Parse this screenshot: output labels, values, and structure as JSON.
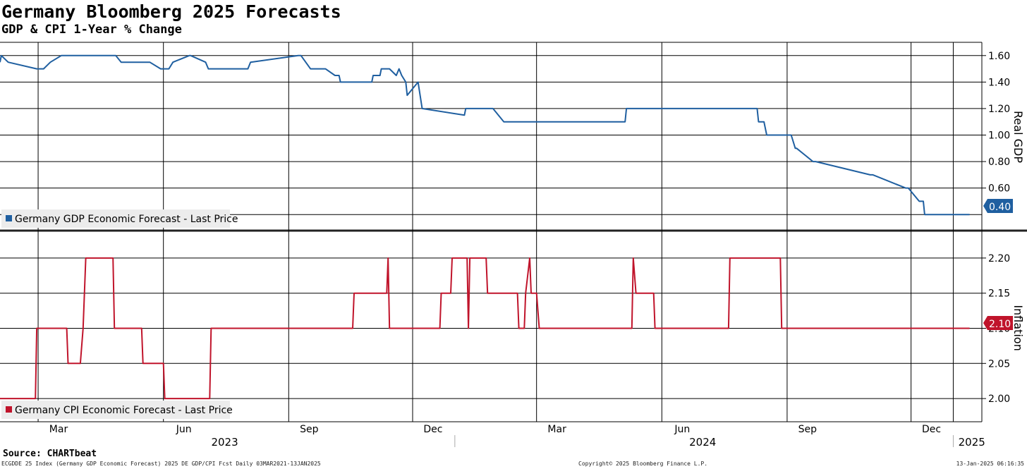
{
  "header": {
    "title": "Germany Bloomberg 2025 Forecasts",
    "subtitle": "GDP & CPI 1-Year % Change"
  },
  "footer": {
    "source": "Source: CHARTbeat",
    "left": "ECGDDE 25 Index (Germany GDP Economic Forecast) 2025 DE GDP/CPI Fcst  Daily 03MAR2021-13JAN2025",
    "mid": "Copyright© 2025 Bloomberg Finance L.P.",
    "right": "13-Jan-2025 06:16:35"
  },
  "colors": {
    "gdp": "#1f5fa0",
    "cpi": "#c0142b",
    "grid": "#000000",
    "panel_divider": "#222222"
  },
  "chart_data": [
    {
      "type": "line",
      "title": "Germany Bloomberg 2025 Forecasts",
      "subtitle": "GDP & CPI 1-Year % Change",
      "ylabel": "Real GDP",
      "ylim": [
        0.3,
        1.7
      ],
      "yticks": [
        "0.60",
        "0.80",
        "1.00",
        "1.20",
        "1.40",
        "1.60"
      ],
      "last_value_label": "0.40",
      "legend": "Germany GDP Economic Forecast - Last Price",
      "legend_position": "bottom-left",
      "grid": true,
      "series": [
        {
          "name": "Germany GDP Economic Forecast - Last Price",
          "x": [
            "2023-02-01",
            "2023-02-02",
            "2023-02-07",
            "2023-02-28",
            "2023-03-01",
            "2023-03-05",
            "2023-03-10",
            "2023-03-18",
            "2023-03-24",
            "2023-03-29",
            "2023-04-27",
            "2023-05-01",
            "2023-05-22",
            "2023-05-30",
            "2023-06-05",
            "2023-06-08",
            "2023-06-20",
            "2023-06-21",
            "2023-07-02",
            "2023-07-04",
            "2023-07-09",
            "2023-08-02",
            "2023-08-04",
            "2023-09-08",
            "2023-09-10",
            "2023-09-17",
            "2023-09-19",
            "2023-09-28",
            "2023-10-05",
            "2023-10-08",
            "2023-10-09",
            "2023-11-01",
            "2023-11-02",
            "2023-11-07",
            "2023-11-08",
            "2023-11-09",
            "2023-11-11",
            "2023-11-12",
            "2023-11-14",
            "2023-11-19",
            "2023-11-21",
            "2023-11-23",
            "2023-11-26",
            "2023-11-27",
            "2023-12-01",
            "2023-12-05",
            "2023-12-08",
            "2024-01-08",
            "2024-01-09",
            "2024-01-25",
            "2024-01-28",
            "2024-01-29",
            "2024-02-06",
            "2024-02-08",
            "2024-05-05",
            "2024-05-06",
            "2024-06-11",
            "2024-08-10",
            "2024-08-11",
            "2024-08-15",
            "2024-08-17",
            "2024-08-18",
            "2024-09-04",
            "2024-09-07",
            "2024-09-08",
            "2024-09-20",
            "2024-09-22",
            "2024-11-01",
            "2024-11-03",
            "2024-11-27",
            "2024-11-29",
            "2024-12-07",
            "2024-12-09",
            "2024-12-10",
            "2024-12-11",
            "2024-12-12",
            "2024-12-13",
            "2025-01-13"
          ],
          "values": [
            1.55,
            1.6,
            1.55,
            1.5,
            1.5,
            1.5,
            1.55,
            1.6,
            1.6,
            1.6,
            1.6,
            1.55,
            1.55,
            1.5,
            1.5,
            1.55,
            1.6,
            1.6,
            1.55,
            1.5,
            1.5,
            1.5,
            1.55,
            1.6,
            1.6,
            1.5,
            1.5,
            1.5,
            1.45,
            1.45,
            1.4,
            1.4,
            1.45,
            1.45,
            1.5,
            1.5,
            1.5,
            1.5,
            1.5,
            1.45,
            1.5,
            1.45,
            1.4,
            1.3,
            1.35,
            1.4,
            1.2,
            1.15,
            1.2,
            1.2,
            1.2,
            1.2,
            1.1,
            1.1,
            1.1,
            1.2,
            1.2,
            1.2,
            1.1,
            1.1,
            1.0,
            1.0,
            1.0,
            0.9,
            0.9,
            0.8,
            0.8,
            0.7,
            0.7,
            0.6,
            0.6,
            0.5,
            0.5,
            0.5,
            0.4,
            0.4,
            0.4,
            0.4
          ]
        }
      ]
    },
    {
      "type": "line",
      "ylabel": "Inflation",
      "ylim": [
        1.967,
        2.233
      ],
      "yticks": [
        "2.00",
        "2.05",
        "2.10",
        "2.15",
        "2.20"
      ],
      "last_value_label": "2.10",
      "legend": "Germany CPI Economic Forecast - Last Price",
      "legend_position": "bottom-left",
      "grid": true,
      "xticks": [
        "Mar",
        "Jun",
        "Sep",
        "Dec",
        "Mar",
        "Jun",
        "Sep",
        "Dec"
      ],
      "year_labels": [
        "2023",
        "2024",
        "2025"
      ],
      "series": [
        {
          "name": "Germany CPI Economic Forecast - Last Price",
          "x": [
            "2023-02-01",
            "2023-02-27",
            "2023-02-28",
            "2023-03-22",
            "2023-03-23",
            "2023-03-31",
            "2023-04-01",
            "2023-04-03",
            "2023-04-05",
            "2023-04-25",
            "2023-04-26",
            "2023-05-16",
            "2023-05-17",
            "2023-05-26",
            "2023-05-27",
            "2023-06-01",
            "2023-06-02",
            "2023-07-05",
            "2023-07-06",
            "2023-10-18",
            "2023-10-19",
            "2023-11-12",
            "2023-11-13",
            "2023-11-14",
            "2023-11-15",
            "2023-12-21",
            "2023-12-22",
            "2023-12-29",
            "2023-12-30",
            "2024-01-10",
            "2024-01-11",
            "2024-01-12",
            "2024-01-14",
            "2024-01-24",
            "2024-01-25",
            "2024-02-16",
            "2024-02-17",
            "2024-02-21",
            "2024-02-22",
            "2024-02-25",
            "2024-02-26",
            "2024-02-27",
            "2024-03-01",
            "2024-03-03",
            "2024-05-10",
            "2024-05-11",
            "2024-05-13",
            "2024-05-26",
            "2024-05-27",
            "2024-07-20",
            "2024-07-21",
            "2024-08-27",
            "2024-08-28",
            "2025-01-13"
          ],
          "values": [
            2.0,
            2.0,
            2.1,
            2.1,
            2.05,
            2.05,
            2.05,
            2.1,
            2.2,
            2.2,
            2.1,
            2.1,
            2.05,
            2.05,
            2.05,
            2.05,
            2.0,
            2.0,
            2.1,
            2.1,
            2.15,
            2.15,
            2.2,
            2.1,
            2.1,
            2.1,
            2.15,
            2.15,
            2.2,
            2.2,
            2.1,
            2.2,
            2.2,
            2.2,
            2.15,
            2.15,
            2.1,
            2.1,
            2.15,
            2.2,
            2.15,
            2.15,
            2.15,
            2.1,
            2.1,
            2.2,
            2.15,
            2.15,
            2.1,
            2.1,
            2.2,
            2.2,
            2.1,
            2.1
          ]
        }
      ]
    }
  ]
}
